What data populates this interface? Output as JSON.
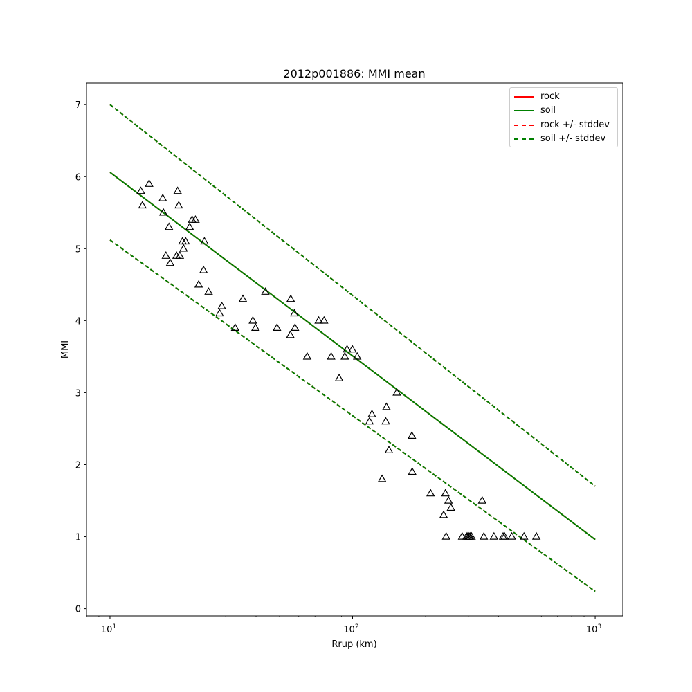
{
  "chart_data": {
    "type": "scatter",
    "title": "2012p001886: MMI mean",
    "xlabel": "Rrup (km)",
    "ylabel": "MMI",
    "xscale": "log",
    "xlim": [
      8,
      1300
    ],
    "ylim": [
      -0.1,
      7.3
    ],
    "x_ticks": [
      {
        "value": 10,
        "base": "10",
        "exp": "1"
      },
      {
        "value": 100,
        "base": "10",
        "exp": "2"
      },
      {
        "value": 1000,
        "base": "10",
        "exp": "3"
      }
    ],
    "y_ticks": [
      {
        "value": 0,
        "label": "0"
      },
      {
        "value": 1,
        "label": "1"
      },
      {
        "value": 2,
        "label": "2"
      },
      {
        "value": 3,
        "label": "3"
      },
      {
        "value": 4,
        "label": "4"
      },
      {
        "value": 5,
        "label": "5"
      },
      {
        "value": 6,
        "label": "6"
      },
      {
        "value": 7,
        "label": "7"
      }
    ],
    "grid": false,
    "legend_position": "top-right",
    "series": [
      {
        "name": "rock",
        "kind": "line",
        "color": "#ff0000",
        "dash": false,
        "x": [
          10,
          1000
        ],
        "y": [
          6.06,
          0.96
        ]
      },
      {
        "name": "soil",
        "kind": "line",
        "color": "#008000",
        "dash": false,
        "x": [
          10,
          1000
        ],
        "y": [
          6.06,
          0.96
        ]
      },
      {
        "name": "rock +/- stddev",
        "kind": "line",
        "color": "#ff0000",
        "dash": true,
        "x": [
          10,
          1000
        ],
        "y": [
          7.0,
          1.7
        ]
      },
      {
        "name": "rock +/- stddev",
        "kind": "line",
        "color": "#ff0000",
        "dash": true,
        "x": [
          10,
          1000
        ],
        "y": [
          5.12,
          0.24
        ]
      },
      {
        "name": "soil +/- stddev",
        "kind": "line",
        "color": "#008000",
        "dash": true,
        "x": [
          10,
          1000
        ],
        "y": [
          7.0,
          1.7
        ]
      },
      {
        "name": "soil +/- stddev",
        "kind": "line",
        "color": "#008000",
        "dash": true,
        "x": [
          10,
          1000
        ],
        "y": [
          5.12,
          0.24
        ]
      }
    ],
    "points": [
      {
        "x": 13.4,
        "y": 5.8
      },
      {
        "x": 13.6,
        "y": 5.6
      },
      {
        "x": 14.5,
        "y": 5.9
      },
      {
        "x": 16.5,
        "y": 5.7
      },
      {
        "x": 16.6,
        "y": 5.5
      },
      {
        "x": 17.0,
        "y": 4.9
      },
      {
        "x": 17.5,
        "y": 5.3
      },
      {
        "x": 17.7,
        "y": 4.8
      },
      {
        "x": 18.8,
        "y": 4.9
      },
      {
        "x": 19.0,
        "y": 5.8
      },
      {
        "x": 19.2,
        "y": 5.6
      },
      {
        "x": 19.4,
        "y": 4.9
      },
      {
        "x": 19.9,
        "y": 5.1
      },
      {
        "x": 20.1,
        "y": 5.0
      },
      {
        "x": 20.5,
        "y": 5.1
      },
      {
        "x": 21.3,
        "y": 5.3
      },
      {
        "x": 21.8,
        "y": 5.4
      },
      {
        "x": 22.5,
        "y": 5.4
      },
      {
        "x": 23.2,
        "y": 4.5
      },
      {
        "x": 24.3,
        "y": 4.7
      },
      {
        "x": 24.5,
        "y": 5.1
      },
      {
        "x": 25.5,
        "y": 4.4
      },
      {
        "x": 28.3,
        "y": 4.1
      },
      {
        "x": 28.9,
        "y": 4.2
      },
      {
        "x": 32.8,
        "y": 3.9
      },
      {
        "x": 35.3,
        "y": 4.3
      },
      {
        "x": 38.8,
        "y": 4.0
      },
      {
        "x": 39.8,
        "y": 3.9
      },
      {
        "x": 43.7,
        "y": 4.4
      },
      {
        "x": 48.8,
        "y": 3.9
      },
      {
        "x": 55.4,
        "y": 3.8
      },
      {
        "x": 55.6,
        "y": 4.3
      },
      {
        "x": 57.5,
        "y": 4.1
      },
      {
        "x": 57.9,
        "y": 3.9
      },
      {
        "x": 65.0,
        "y": 3.5
      },
      {
        "x": 72.5,
        "y": 4.0
      },
      {
        "x": 76.3,
        "y": 4.0
      },
      {
        "x": 81.6,
        "y": 3.5
      },
      {
        "x": 88.0,
        "y": 3.2
      },
      {
        "x": 92.9,
        "y": 3.5
      },
      {
        "x": 94.9,
        "y": 3.6
      },
      {
        "x": 99.8,
        "y": 3.6
      },
      {
        "x": 104.5,
        "y": 3.5
      },
      {
        "x": 117.4,
        "y": 2.6
      },
      {
        "x": 120.2,
        "y": 2.7
      },
      {
        "x": 132.3,
        "y": 1.8
      },
      {
        "x": 137.0,
        "y": 2.6
      },
      {
        "x": 137.9,
        "y": 2.8
      },
      {
        "x": 141.2,
        "y": 2.2
      },
      {
        "x": 152.2,
        "y": 3.0
      },
      {
        "x": 175.6,
        "y": 2.4
      },
      {
        "x": 176.1,
        "y": 1.9
      },
      {
        "x": 209.7,
        "y": 1.6
      },
      {
        "x": 237.3,
        "y": 1.3
      },
      {
        "x": 241.4,
        "y": 1.6
      },
      {
        "x": 243.1,
        "y": 1.0
      },
      {
        "x": 248.6,
        "y": 1.5
      },
      {
        "x": 254.4,
        "y": 1.4
      },
      {
        "x": 282.9,
        "y": 1.0
      },
      {
        "x": 294.7,
        "y": 1.0
      },
      {
        "x": 298.2,
        "y": 1.0
      },
      {
        "x": 302.1,
        "y": 1.0
      },
      {
        "x": 305.0,
        "y": 1.0
      },
      {
        "x": 309.3,
        "y": 1.0
      },
      {
        "x": 342.1,
        "y": 1.5
      },
      {
        "x": 347.6,
        "y": 1.0
      },
      {
        "x": 382.5,
        "y": 1.0
      },
      {
        "x": 417.3,
        "y": 1.0
      },
      {
        "x": 423.2,
        "y": 1.0
      },
      {
        "x": 453.2,
        "y": 1.0
      },
      {
        "x": 509.0,
        "y": 1.0
      },
      {
        "x": 572.4,
        "y": 1.0
      }
    ],
    "legend": [
      {
        "label": "rock",
        "color": "#ff0000",
        "dash": false
      },
      {
        "label": "soil",
        "color": "#008000",
        "dash": false
      },
      {
        "label": "rock +/- stddev",
        "color": "#ff0000",
        "dash": true
      },
      {
        "label": "soil +/- stddev",
        "color": "#008000",
        "dash": true
      }
    ]
  }
}
